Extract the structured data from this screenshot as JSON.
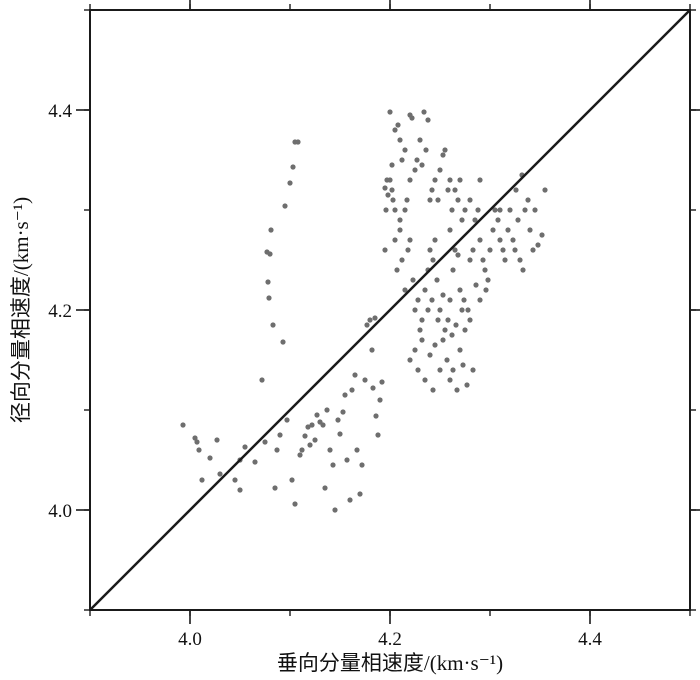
{
  "chart_data": {
    "type": "scatter",
    "title": "",
    "xlabel": "垂向分量相速度/(km·s⁻¹)",
    "ylabel": "径向分量相速度/(km·s⁻¹)",
    "xlim": [
      3.9,
      4.5
    ],
    "ylim": [
      3.9,
      4.5
    ],
    "xticks": [
      {
        "value": 4.0,
        "label": "4.0"
      },
      {
        "value": 4.2,
        "label": "4.2"
      },
      {
        "value": 4.4,
        "label": "4.4"
      }
    ],
    "yticks": [
      {
        "value": 4.0,
        "label": "4.0"
      },
      {
        "value": 4.2,
        "label": "4.2"
      },
      {
        "value": 4.4,
        "label": "4.4"
      }
    ],
    "minor_tick_step": 0.1,
    "grid": false,
    "reference_line": {
      "from": [
        3.9,
        3.9
      ],
      "to": [
        4.5,
        4.5
      ],
      "color": "#1a1a1a"
    },
    "point_color": "#6e6e6e",
    "series": [
      {
        "points": [
          [
            3.993,
            4.085
          ],
          [
            4.005,
            4.072
          ],
          [
            4.007,
            4.068
          ],
          [
            4.009,
            4.06
          ],
          [
            4.012,
            4.03
          ],
          [
            4.02,
            4.052
          ],
          [
            4.027,
            4.07
          ],
          [
            4.03,
            4.036
          ],
          [
            4.045,
            4.03
          ],
          [
            4.05,
            4.02
          ],
          [
            4.05,
            4.05
          ],
          [
            4.055,
            4.063
          ],
          [
            4.065,
            4.048
          ],
          [
            4.072,
            4.13
          ],
          [
            4.075,
            4.068
          ],
          [
            4.077,
            4.258
          ],
          [
            4.078,
            4.228
          ],
          [
            4.079,
            4.212
          ],
          [
            4.08,
            4.256
          ],
          [
            4.081,
            4.28
          ],
          [
            4.083,
            4.185
          ],
          [
            4.085,
            4.022
          ],
          [
            4.087,
            4.06
          ],
          [
            4.09,
            4.075
          ],
          [
            4.093,
            4.168
          ],
          [
            4.095,
            4.304
          ],
          [
            4.097,
            4.09
          ],
          [
            4.1,
            4.327
          ],
          [
            4.103,
            4.343
          ],
          [
            4.105,
            4.368
          ],
          [
            4.108,
            4.368
          ],
          [
            4.102,
            4.03
          ],
          [
            4.105,
            4.006
          ],
          [
            4.11,
            4.055
          ],
          [
            4.112,
            4.06
          ],
          [
            4.115,
            4.074
          ],
          [
            4.118,
            4.083
          ],
          [
            4.12,
            4.065
          ],
          [
            4.122,
            4.085
          ],
          [
            4.125,
            4.07
          ],
          [
            4.127,
            4.095
          ],
          [
            4.13,
            4.088
          ],
          [
            4.133,
            4.085
          ],
          [
            4.135,
            4.022
          ],
          [
            4.137,
            4.1
          ],
          [
            4.14,
            4.06
          ],
          [
            4.143,
            4.045
          ],
          [
            4.145,
            4.0
          ],
          [
            4.148,
            4.09
          ],
          [
            4.15,
            4.076
          ],
          [
            4.153,
            4.098
          ],
          [
            4.155,
            4.115
          ],
          [
            4.157,
            4.05
          ],
          [
            4.16,
            4.01
          ],
          [
            4.162,
            4.12
          ],
          [
            4.165,
            4.135
          ],
          [
            4.167,
            4.06
          ],
          [
            4.17,
            4.016
          ],
          [
            4.172,
            4.045
          ],
          [
            4.175,
            4.13
          ],
          [
            4.177,
            4.185
          ],
          [
            4.18,
            4.19
          ],
          [
            4.182,
            4.16
          ],
          [
            4.183,
            4.122
          ],
          [
            4.185,
            4.192
          ],
          [
            4.186,
            4.094
          ],
          [
            4.188,
            4.075
          ],
          [
            4.19,
            4.11
          ],
          [
            4.192,
            4.128
          ],
          [
            4.195,
            4.322
          ],
          [
            4.197,
            4.33
          ],
          [
            4.2,
            4.398
          ],
          [
            4.202,
            4.345
          ],
          [
            4.205,
            4.38
          ],
          [
            4.208,
            4.385
          ],
          [
            4.21,
            4.37
          ],
          [
            4.212,
            4.35
          ],
          [
            4.215,
            4.36
          ],
          [
            4.217,
            4.31
          ],
          [
            4.22,
            4.395
          ],
          [
            4.222,
            4.392
          ],
          [
            4.225,
            4.34
          ],
          [
            4.227,
            4.35
          ],
          [
            4.23,
            4.37
          ],
          [
            4.232,
            4.345
          ],
          [
            4.234,
            4.398
          ],
          [
            4.236,
            4.36
          ],
          [
            4.238,
            4.39
          ],
          [
            4.242,
            4.32
          ],
          [
            4.245,
            4.33
          ],
          [
            4.248,
            4.31
          ],
          [
            4.25,
            4.34
          ],
          [
            4.253,
            4.355
          ],
          [
            4.255,
            4.36
          ],
          [
            4.258,
            4.32
          ],
          [
            4.26,
            4.33
          ],
          [
            4.262,
            4.3
          ],
          [
            4.265,
            4.32
          ],
          [
            4.268,
            4.31
          ],
          [
            4.27,
            4.33
          ],
          [
            4.203,
            4.31
          ],
          [
            4.205,
            4.3
          ],
          [
            4.207,
            4.24
          ],
          [
            4.21,
            4.28
          ],
          [
            4.212,
            4.25
          ],
          [
            4.215,
            4.22
          ],
          [
            4.218,
            4.26
          ],
          [
            4.22,
            4.27
          ],
          [
            4.223,
            4.23
          ],
          [
            4.225,
            4.2
          ],
          [
            4.228,
            4.21
          ],
          [
            4.23,
            4.18
          ],
          [
            4.232,
            4.19
          ],
          [
            4.235,
            4.22
          ],
          [
            4.238,
            4.24
          ],
          [
            4.24,
            4.26
          ],
          [
            4.243,
            4.25
          ],
          [
            4.245,
            4.27
          ],
          [
            4.247,
            4.23
          ],
          [
            4.25,
            4.2
          ],
          [
            4.253,
            4.215
          ],
          [
            4.255,
            4.18
          ],
          [
            4.258,
            4.19
          ],
          [
            4.26,
            4.21
          ],
          [
            4.263,
            4.24
          ],
          [
            4.265,
            4.26
          ],
          [
            4.268,
            4.255
          ],
          [
            4.27,
            4.22
          ],
          [
            4.272,
            4.2
          ],
          [
            4.275,
            4.18
          ],
          [
            4.278,
            4.2
          ],
          [
            4.28,
            4.25
          ],
          [
            4.283,
            4.26
          ],
          [
            4.285,
            4.29
          ],
          [
            4.288,
            4.3
          ],
          [
            4.29,
            4.27
          ],
          [
            4.293,
            4.25
          ],
          [
            4.295,
            4.24
          ],
          [
            4.298,
            4.23
          ],
          [
            4.3,
            4.26
          ],
          [
            4.303,
            4.28
          ],
          [
            4.305,
            4.3
          ],
          [
            4.308,
            4.29
          ],
          [
            4.31,
            4.27
          ],
          [
            4.313,
            4.26
          ],
          [
            4.315,
            4.25
          ],
          [
            4.318,
            4.28
          ],
          [
            4.32,
            4.3
          ],
          [
            4.323,
            4.27
          ],
          [
            4.325,
            4.26
          ],
          [
            4.328,
            4.29
          ],
          [
            4.33,
            4.25
          ],
          [
            4.333,
            4.24
          ],
          [
            4.335,
            4.3
          ],
          [
            4.338,
            4.31
          ],
          [
            4.34,
            4.28
          ],
          [
            4.343,
            4.26
          ],
          [
            4.345,
            4.3
          ],
          [
            4.348,
            4.265
          ],
          [
            4.352,
            4.275
          ],
          [
            4.355,
            4.32
          ],
          [
            4.22,
            4.15
          ],
          [
            4.225,
            4.16
          ],
          [
            4.228,
            4.14
          ],
          [
            4.232,
            4.17
          ],
          [
            4.235,
            4.13
          ],
          [
            4.24,
            4.155
          ],
          [
            4.243,
            4.12
          ],
          [
            4.245,
            4.165
          ],
          [
            4.25,
            4.14
          ],
          [
            4.253,
            4.17
          ],
          [
            4.257,
            4.15
          ],
          [
            4.26,
            4.13
          ],
          [
            4.263,
            4.14
          ],
          [
            4.267,
            4.12
          ],
          [
            4.27,
            4.16
          ],
          [
            4.273,
            4.145
          ],
          [
            4.277,
            4.125
          ],
          [
            4.28,
            4.19
          ],
          [
            4.283,
            4.14
          ],
          [
            4.2,
            4.33
          ],
          [
            4.198,
            4.315
          ],
          [
            4.196,
            4.3
          ],
          [
            4.202,
            4.32
          ],
          [
            4.21,
            4.29
          ],
          [
            4.215,
            4.3
          ],
          [
            4.22,
            4.33
          ],
          [
            4.24,
            4.31
          ],
          [
            4.26,
            4.28
          ],
          [
            4.272,
            4.29
          ],
          [
            4.275,
            4.3
          ],
          [
            4.28,
            4.31
          ],
          [
            4.29,
            4.33
          ],
          [
            4.31,
            4.3
          ],
          [
            4.326,
            4.32
          ],
          [
            4.332,
            4.335
          ],
          [
            4.195,
            4.26
          ],
          [
            4.205,
            4.27
          ],
          [
            4.238,
            4.2
          ],
          [
            4.242,
            4.21
          ],
          [
            4.248,
            4.19
          ],
          [
            4.262,
            4.175
          ],
          [
            4.266,
            4.185
          ],
          [
            4.274,
            4.21
          ],
          [
            4.29,
            4.21
          ],
          [
            4.296,
            4.22
          ],
          [
            4.286,
            4.225
          ]
        ]
      }
    ]
  }
}
